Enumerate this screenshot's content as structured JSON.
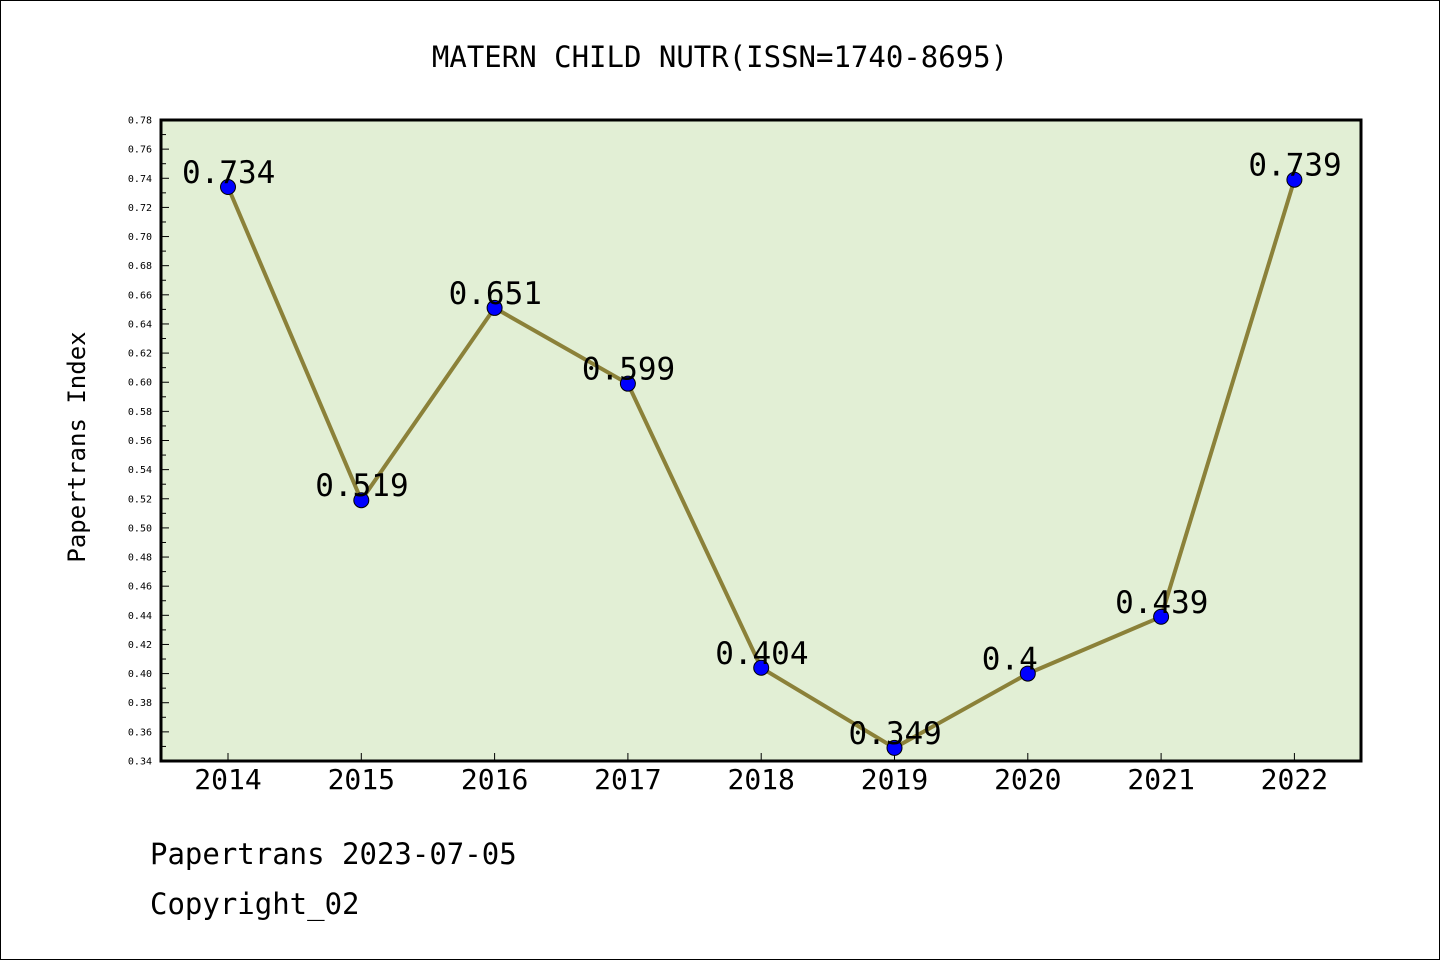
{
  "chart_data": {
    "type": "line",
    "title": "MATERN CHILD NUTR(ISSN=1740-8695)",
    "xlabel": "",
    "ylabel": "Papertrans Index",
    "categories": [
      "2014",
      "2015",
      "2016",
      "2017",
      "2018",
      "2019",
      "2020",
      "2021",
      "2022"
    ],
    "series": [
      {
        "values": [
          0.734,
          0.519,
          0.651,
          0.599,
          0.404,
          0.349,
          0.4,
          0.439,
          0.739
        ],
        "labels": [
          "0.734",
          "0.519",
          "0.651",
          "0.599",
          "0.404",
          "0.349",
          "0.4",
          "0.439",
          "0.739"
        ]
      }
    ],
    "ylim": [
      0.34,
      0.78
    ],
    "yticks": [
      "0.34",
      "0.36",
      "0.38",
      "0.40",
      "0.42",
      "0.44",
      "0.46",
      "0.48",
      "0.50",
      "0.52",
      "0.54",
      "0.56",
      "0.58",
      "0.60",
      "0.62",
      "0.64",
      "0.66",
      "0.68",
      "0.70",
      "0.72",
      "0.74",
      "0.76",
      "0.78"
    ],
    "grid": false,
    "legend": "none",
    "colors": {
      "plot_background": "#e2efd5",
      "line": "#8b8139",
      "marker": "#0000ff"
    }
  },
  "footer": {
    "line1": "Papertrans 2023-07-05",
    "line2": "Copyright_02"
  }
}
